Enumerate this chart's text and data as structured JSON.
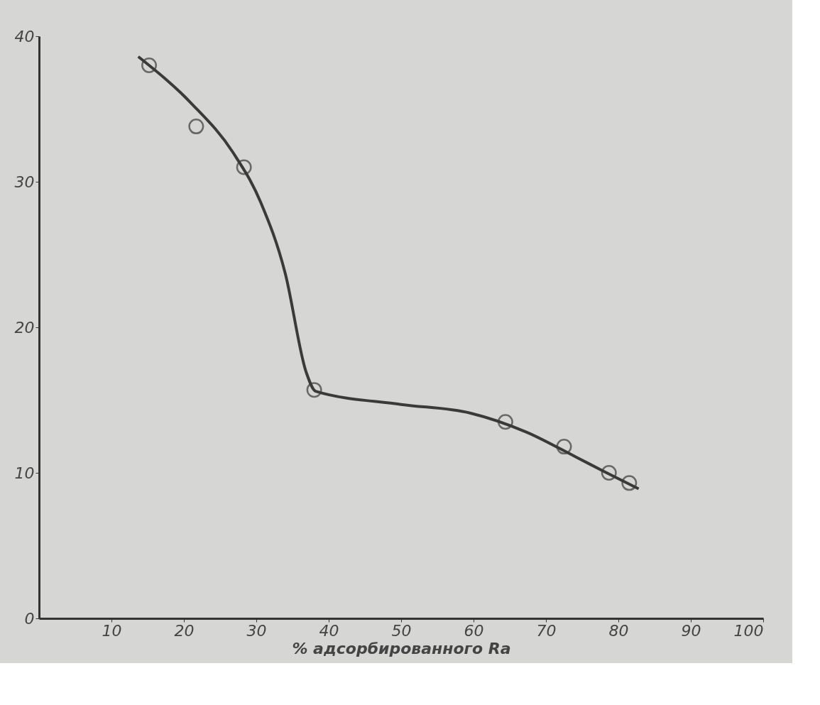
{
  "chart_data": {
    "type": "scatter",
    "xlabel": "% адсорбированного Ra",
    "xlim": [
      0,
      100
    ],
    "ylim": [
      0,
      40
    ],
    "xticks": [
      10,
      20,
      30,
      40,
      50,
      60,
      70,
      80,
      90,
      100
    ],
    "yticks": [
      0,
      10,
      20,
      30,
      40
    ],
    "grid": false,
    "series": [
      {
        "type": "line",
        "color": "#3a3a3a",
        "line_style": "solid",
        "x": [
          13.7,
          21.0,
          26.8,
          30.6,
          34.0,
          36.9,
          38.2,
          50,
          59.6,
          67.3,
          74.1,
          78,
          82.8
        ],
        "values": [
          38.6,
          35.4,
          32.0,
          28.6,
          23.7,
          16.9,
          15.6,
          14.7,
          14.1,
          12.8,
          11.1,
          10.1,
          8.9
        ]
      },
      {
        "color": "#3a3a3a",
        "marker": "circle",
        "x": [
          15.2,
          21.7,
          28.3,
          38.0,
          64.4,
          72.5,
          78.7,
          81.5
        ],
        "values": [
          38.0,
          33.8,
          31.0,
          15.7,
          13.5,
          11.8,
          10.0,
          9.3
        ]
      }
    ]
  }
}
